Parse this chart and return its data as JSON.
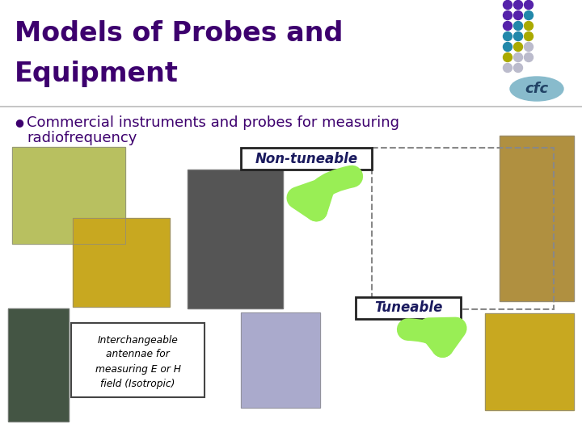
{
  "title_line1": "Models of Probes and",
  "title_line2": "Equipment",
  "title_color": "#3D006E",
  "bullet_text_line1": "Commercial instruments and probes for measuring",
  "bullet_text_line2": "radiofrequency",
  "bullet_color": "#3D006E",
  "non_tuneable_label": "Non-tuneable",
  "tuneable_label": "Tuneable",
  "interchangeable_text": "Interchangeable\nantennae for\nmeasuring E or H\nfield (Isotropic)",
  "bg_color": "#FFFFFF",
  "arrow_fill": "#99EE55",
  "arrow_edge": "#44AA00",
  "logo_purple": "#5522AA",
  "logo_teal": "#2288AA",
  "logo_yellow": "#AAAA00",
  "logo_light": "#BBBBCC",
  "logo_text": "cfc",
  "logo_oval_color": "#88BBCC",
  "separator_color": "#BBBBBB",
  "nt_box_edge": "#222222",
  "t_box_edge": "#222222",
  "ib_box_edge": "#444444",
  "dashed_color": "#888888",
  "title_fs": 24,
  "bullet_fs": 13,
  "label_fs": 12
}
